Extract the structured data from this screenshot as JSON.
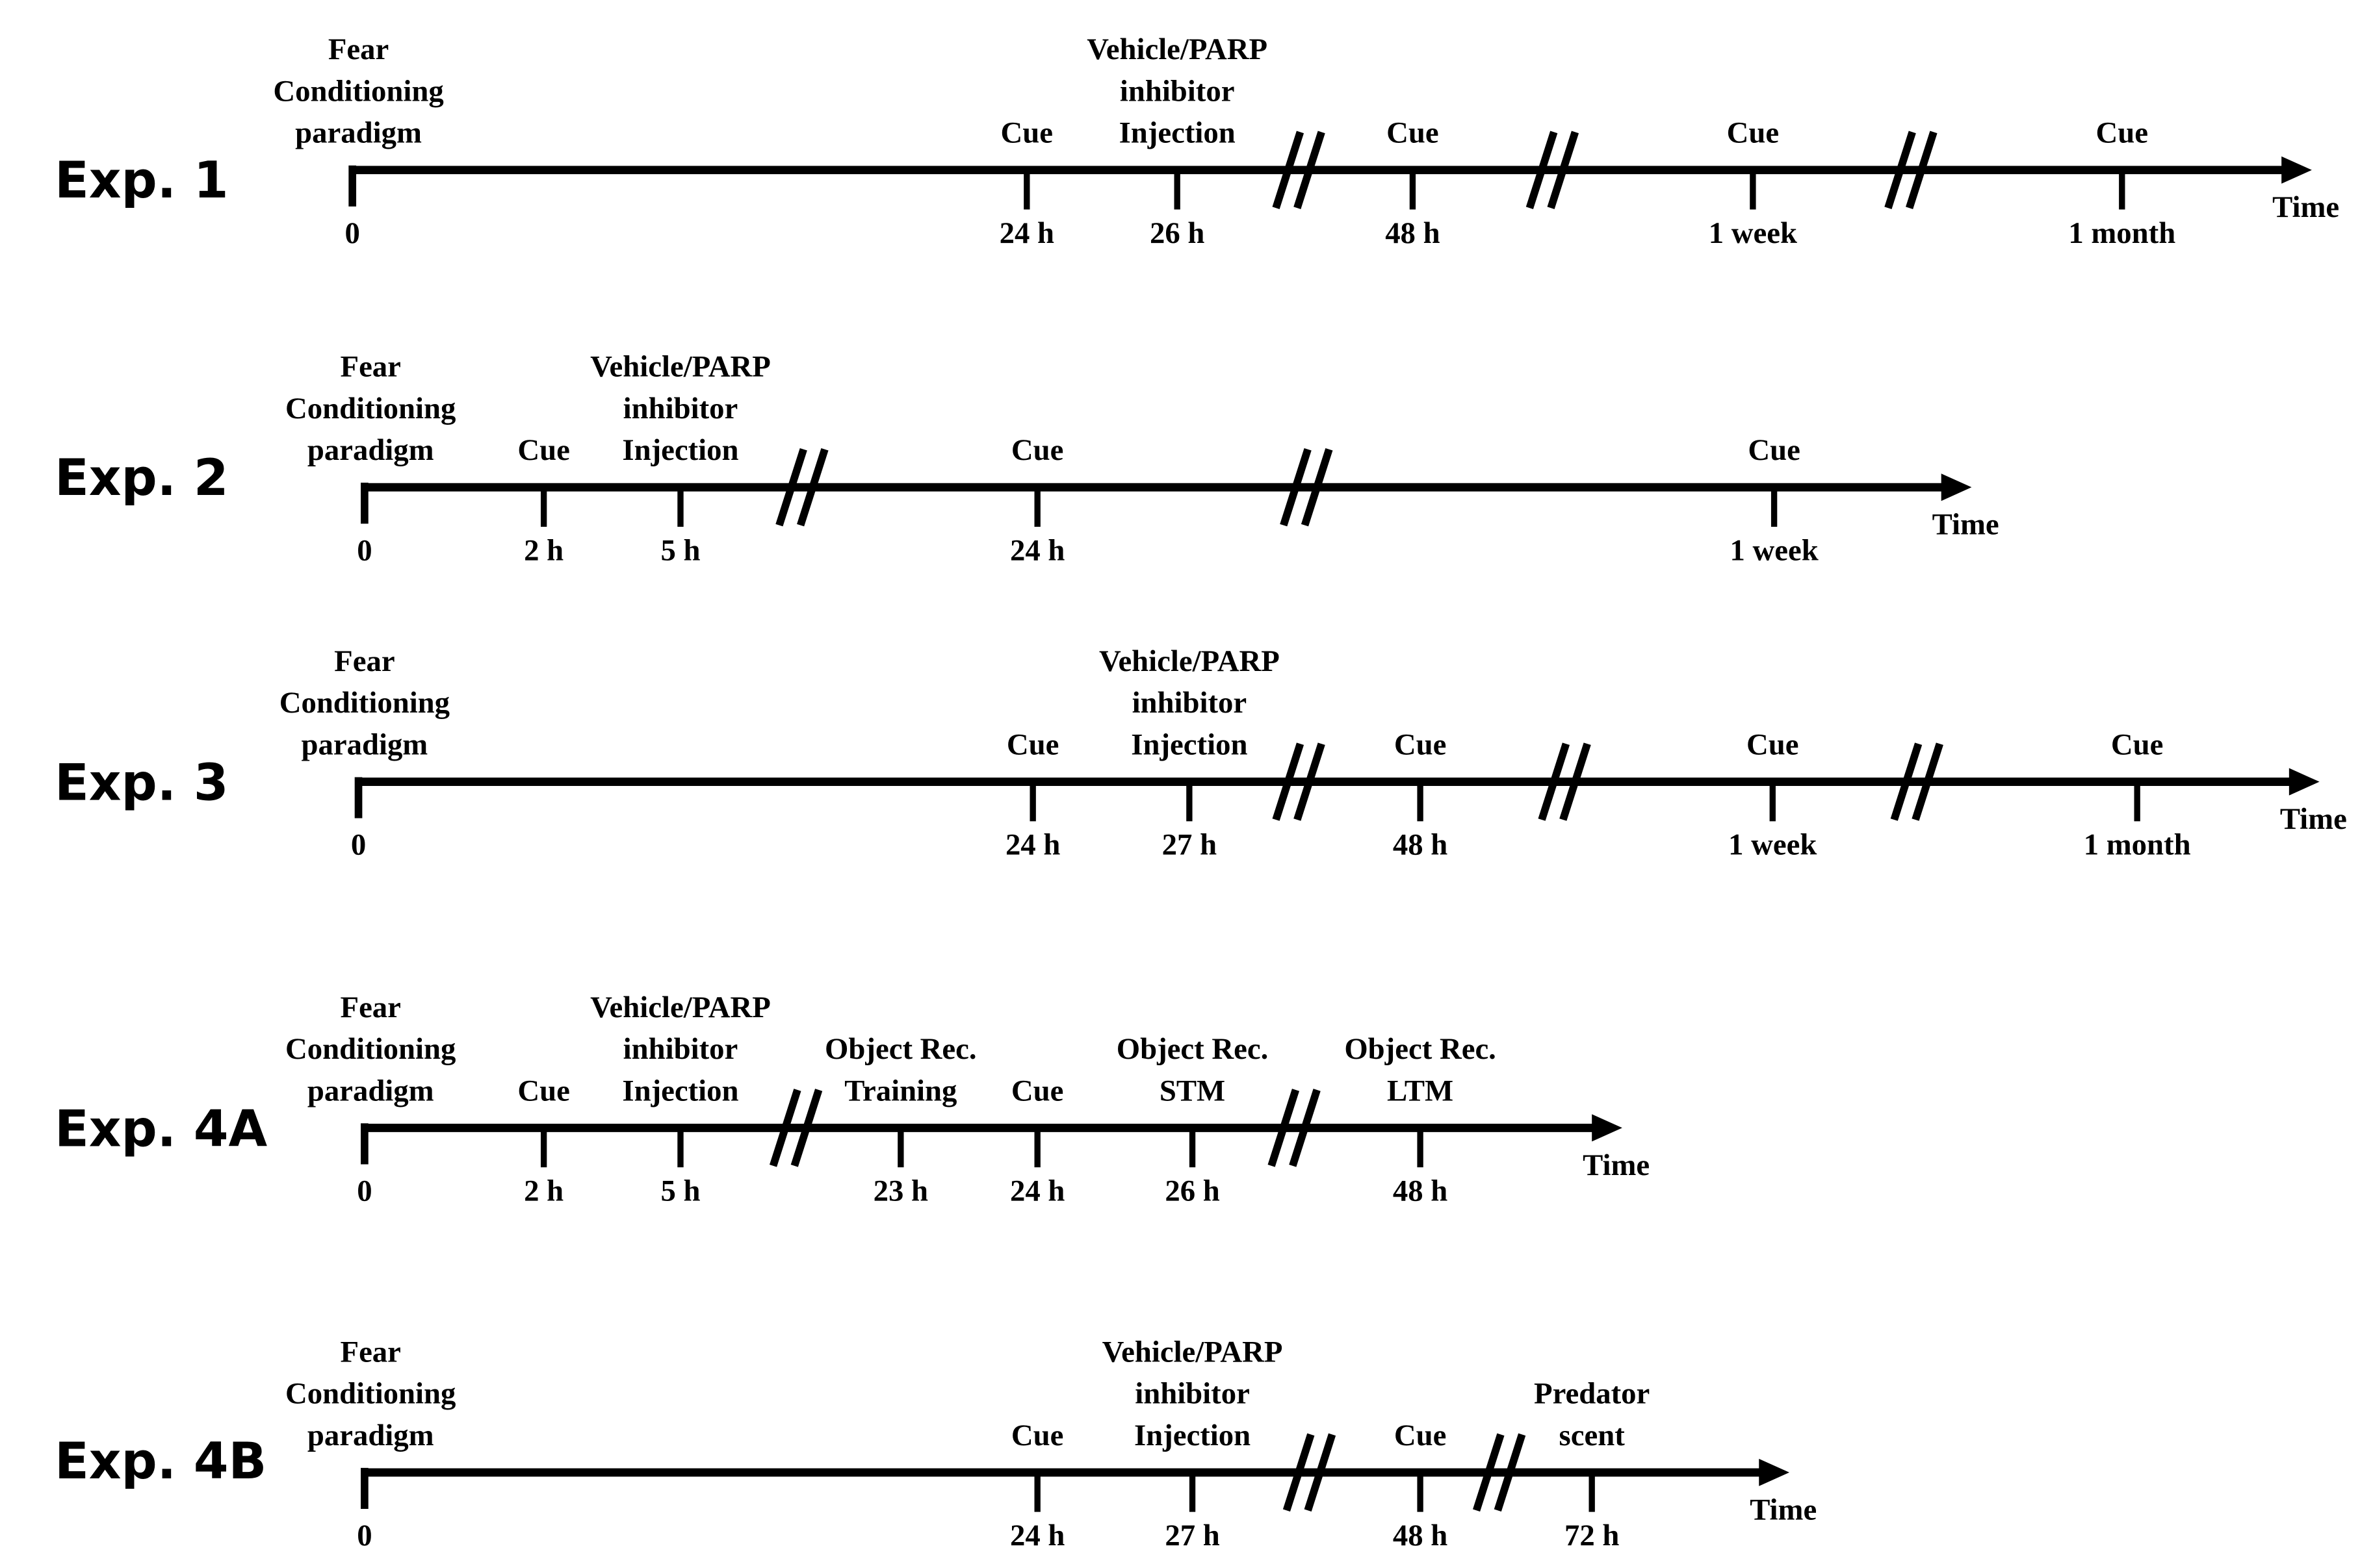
{
  "experiments": [
    {
      "label": "Exp. 1",
      "axis_label": "Time",
      "events": [
        {
          "tick": "0",
          "text": [
            "Fear",
            "Conditioning",
            "paradigm"
          ]
        },
        {
          "tick": "24 h",
          "text": [
            "Cue"
          ]
        },
        {
          "tick": "26 h",
          "text": [
            "Vehicle/PARP",
            "inhibitor",
            "Injection"
          ]
        },
        {
          "tick": "48 h",
          "text": [
            "Cue"
          ]
        },
        {
          "tick": "1 week",
          "text": [
            "Cue"
          ]
        },
        {
          "tick": "1 month",
          "text": [
            "Cue"
          ]
        }
      ]
    },
    {
      "label": "Exp. 2",
      "axis_label": "Time",
      "events": [
        {
          "tick": "0",
          "text": [
            "Fear",
            "Conditioning",
            "paradigm"
          ]
        },
        {
          "tick": "2 h",
          "text": [
            "Cue"
          ]
        },
        {
          "tick": "5 h",
          "text": [
            "Vehicle/PARP",
            "inhibitor",
            "Injection"
          ]
        },
        {
          "tick": "24 h",
          "text": [
            "Cue"
          ]
        },
        {
          "tick": "1 week",
          "text": [
            "Cue"
          ]
        }
      ]
    },
    {
      "label": "Exp. 3",
      "axis_label": "Time",
      "events": [
        {
          "tick": "0",
          "text": [
            "Fear",
            "Conditioning",
            "paradigm"
          ]
        },
        {
          "tick": "24 h",
          "text": [
            "Cue"
          ]
        },
        {
          "tick": "27 h",
          "text": [
            "Vehicle/PARP",
            "inhibitor",
            "Injection"
          ]
        },
        {
          "tick": "48 h",
          "text": [
            "Cue"
          ]
        },
        {
          "tick": "1 week",
          "text": [
            "Cue"
          ]
        },
        {
          "tick": "1 month",
          "text": [
            "Cue"
          ]
        }
      ]
    },
    {
      "label": "Exp. 4A",
      "axis_label": "Time",
      "events": [
        {
          "tick": "0",
          "text": [
            "Fear",
            "Conditioning",
            "paradigm"
          ]
        },
        {
          "tick": "2 h",
          "text": [
            "Cue"
          ]
        },
        {
          "tick": "5 h",
          "text": [
            "Vehicle/PARP",
            "inhibitor",
            "Injection"
          ]
        },
        {
          "tick": "23 h",
          "text": [
            "Object Rec.",
            "Training"
          ]
        },
        {
          "tick": "24 h",
          "text": [
            "Cue"
          ]
        },
        {
          "tick": "26 h",
          "text": [
            "Object Rec.",
            "STM"
          ]
        },
        {
          "tick": "48 h",
          "text": [
            "Object Rec.",
            "LTM"
          ]
        }
      ]
    },
    {
      "label": "Exp. 4B",
      "axis_label": "Time",
      "events": [
        {
          "tick": "0",
          "text": [
            "Fear",
            "Conditioning",
            "paradigm"
          ]
        },
        {
          "tick": "24 h",
          "text": [
            "Cue"
          ]
        },
        {
          "tick": "27 h",
          "text": [
            "Vehicle/PARP",
            "inhibitor",
            "Injection"
          ]
        },
        {
          "tick": "48 h",
          "text": [
            "Cue"
          ]
        },
        {
          "tick": "72 h",
          "text": [
            "Predator",
            "scent"
          ]
        }
      ]
    }
  ]
}
